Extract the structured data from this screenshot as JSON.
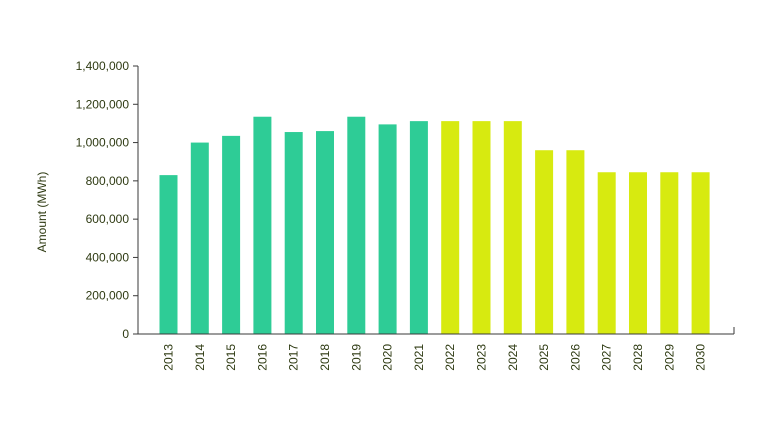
{
  "chart_data": {
    "type": "bar",
    "title": "",
    "xlabel": "",
    "ylabel": "Amount (MWh)",
    "ylim": [
      0,
      1400000
    ],
    "yticks": [
      0,
      200000,
      400000,
      600000,
      800000,
      1000000,
      1200000,
      1400000
    ],
    "ytick_labels": [
      "0",
      "200,000",
      "400,000",
      "600,000",
      "800,000",
      "1,000,000",
      "1,200,000",
      "1,400,000"
    ],
    "grid": false,
    "categories": [
      "2013",
      "2014",
      "2015",
      "2016",
      "2017",
      "2018",
      "2019",
      "2020",
      "2021",
      "2022",
      "2023",
      "2024",
      "2025",
      "2026",
      "2027",
      "2028",
      "2029",
      "2030"
    ],
    "values": [
      830000,
      1000000,
      1035000,
      1135000,
      1055000,
      1060000,
      1135000,
      1095000,
      1112000,
      1112000,
      1112000,
      1112000,
      960000,
      960000,
      845000,
      845000,
      845000,
      845000
    ],
    "bar_colors": [
      "#2ecc96",
      "#2ecc96",
      "#2ecc96",
      "#2ecc96",
      "#2ecc96",
      "#2ecc96",
      "#2ecc96",
      "#2ecc96",
      "#2ecc96",
      "#d7ea10",
      "#d7ea10",
      "#d7ea10",
      "#d7ea10",
      "#d7ea10",
      "#d7ea10",
      "#d7ea10",
      "#d7ea10",
      "#d7ea10"
    ]
  }
}
